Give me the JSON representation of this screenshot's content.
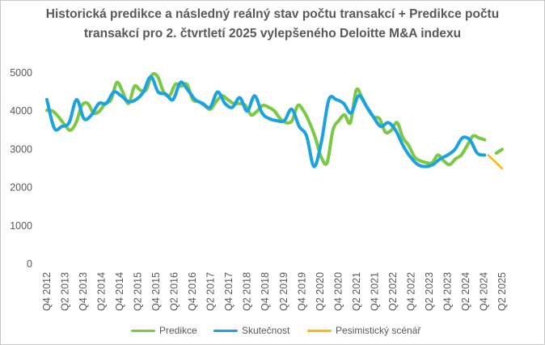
{
  "chart_data": {
    "type": "line",
    "title_lines": [
      "Historická predikce a následný reálný stav počtu transakcí + Predikce počtu",
      "transakcí pro 2. čtvrtletí 2025 vylepšeného Deloitte M&A indexu"
    ],
    "x_tick_labels": [
      "Q4 2012",
      "Q2 2013",
      "Q4 2013",
      "Q2 2014",
      "Q4 2014",
      "Q2 2015",
      "Q4 2015",
      "Q2 2016",
      "Q4 2016",
      "Q2 2017",
      "Q4 2017",
      "Q2 2018",
      "Q4 2018",
      "Q2 2019",
      "Q4 2019",
      "Q2 2020",
      "Q4 2020",
      "Q2 2021",
      "Q4 2021",
      "Q2 2022",
      "Q4 2022",
      "Q2 2023",
      "Q4 2023",
      "Q2 2024",
      "Q4 2024",
      "Q2 2025"
    ],
    "ylim": [
      0,
      5000
    ],
    "yticks": [
      0,
      1000,
      2000,
      3000,
      4000,
      5000
    ],
    "grid": false,
    "legend_position": "bottom",
    "series": [
      {
        "name": "Predikce",
        "color": "#7ac943",
        "values": [
          4020,
          4000,
          3850,
          3650,
          3500,
          3700,
          4150,
          4200,
          3950,
          4000,
          4200,
          4300,
          4750,
          4500,
          4200,
          4650,
          4550,
          4550,
          4950,
          4900,
          4500,
          4400,
          4700,
          4650,
          4700,
          4300,
          4250,
          4150,
          4050,
          4250,
          4400,
          4300,
          4200,
          4200,
          4150,
          3900,
          4000,
          4150,
          4100,
          4000,
          3800,
          3700,
          3750,
          4150,
          4000,
          3700,
          3300,
          2800,
          2650,
          3500,
          3750,
          3900,
          3700,
          4550,
          4350,
          4050,
          3850,
          3800,
          3450,
          3500,
          3700,
          3300,
          3100,
          2800,
          2700,
          2650,
          2650,
          2850,
          2700,
          2600,
          2750,
          2850,
          3100,
          3350,
          3300,
          3250,
          null,
          2900,
          3000
        ],
        "start_index": 0,
        "line_width": 4
      },
      {
        "name": "Skutečnost",
        "color": "#1aa3e0",
        "values": [
          4300,
          3550,
          3600,
          3700,
          4300,
          3800,
          3900,
          4200,
          4200,
          4500,
          4400,
          4250,
          4300,
          4500,
          4900,
          4500,
          4450,
          4300,
          4750,
          4550,
          4300,
          4200,
          4100,
          4500,
          4200,
          4100,
          4350,
          4000,
          4400,
          3950,
          3800,
          3750,
          3750,
          4050,
          3600,
          3350,
          2550,
          3200,
          4300,
          4300,
          4200,
          3950,
          4400,
          4150,
          3850,
          3600,
          3700,
          3500,
          3100,
          2800,
          2600,
          2550,
          2600,
          2750,
          2850,
          3000,
          3300,
          3250,
          2900,
          2850
        ],
        "x_positions": [
          0,
          1,
          2,
          3,
          4,
          5,
          6,
          7,
          8,
          9,
          10,
          11,
          12,
          13,
          14,
          15,
          16,
          17,
          18,
          19,
          20,
          21,
          22,
          23,
          24,
          25,
          26,
          27,
          28,
          29,
          30,
          31,
          32,
          33,
          34,
          35,
          36,
          37,
          38,
          39,
          40,
          41,
          42,
          43,
          44,
          45,
          46,
          47,
          48,
          49,
          50,
          51,
          52,
          53,
          54,
          55,
          56,
          57,
          58,
          59
        ],
        "line_width": 4
      },
      {
        "name": "Pesimistický scénář",
        "color": "#ffb900",
        "values": [
          2850,
          2500
        ],
        "line_width": 2.5
      }
    ]
  }
}
